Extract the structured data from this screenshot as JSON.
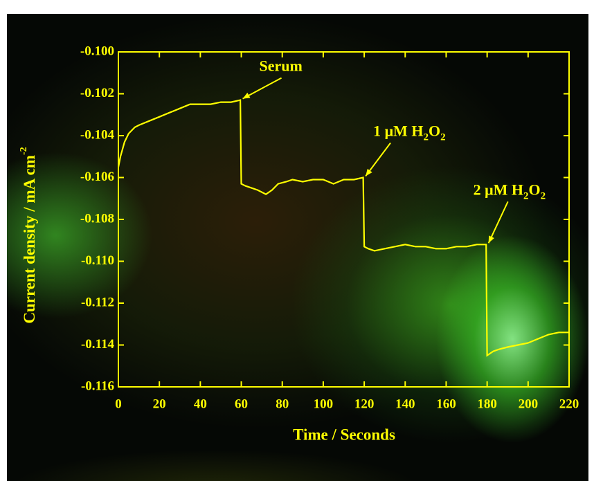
{
  "chart_data": {
    "type": "line",
    "x_label": "Time / Seconds",
    "y_label": [
      {
        "text": "Current density / mA cm",
        "sup": false
      },
      {
        "text": "-2",
        "sup": true
      }
    ],
    "color": "#ffff00",
    "x": [
      0,
      1,
      3,
      5,
      8,
      10,
      15,
      20,
      25,
      30,
      35,
      40,
      45,
      50,
      55,
      59.5,
      60,
      62,
      65,
      68,
      72,
      75,
      78,
      82,
      85,
      90,
      95,
      100,
      105,
      110,
      115,
      119.5,
      120,
      122,
      125,
      130,
      135,
      140,
      145,
      150,
      155,
      160,
      165,
      170,
      175,
      179.5,
      180,
      183,
      186,
      190,
      195,
      200,
      205,
      210,
      215,
      220
    ],
    "values": [
      -0.1055,
      -0.105,
      -0.1043,
      -0.1039,
      -0.1036,
      -0.1035,
      -0.1033,
      -0.1031,
      -0.1029,
      -0.1027,
      -0.1025,
      -0.1025,
      -0.1025,
      -0.1024,
      -0.1024,
      -0.1023,
      -0.1063,
      -0.1064,
      -0.1065,
      -0.1066,
      -0.1068,
      -0.1066,
      -0.1063,
      -0.1062,
      -0.1061,
      -0.1062,
      -0.1061,
      -0.1061,
      -0.1063,
      -0.1061,
      -0.1061,
      -0.106,
      -0.1093,
      -0.1094,
      -0.1095,
      -0.1094,
      -0.1093,
      -0.1092,
      -0.1093,
      -0.1093,
      -0.1094,
      -0.1094,
      -0.1093,
      -0.1093,
      -0.1092,
      -0.1092,
      -0.1145,
      -0.1143,
      -0.1142,
      -0.1141,
      -0.114,
      -0.1139,
      -0.1137,
      -0.1135,
      -0.1134,
      -0.1134
    ],
    "xlim": [
      0,
      220
    ],
    "xticks": [
      0,
      20,
      40,
      60,
      80,
      100,
      120,
      140,
      160,
      180,
      200,
      220
    ],
    "ylim": [
      -0.116,
      -0.1
    ],
    "yticks": [
      {
        "value": -0.1,
        "label": "-0.100"
      },
      {
        "value": -0.102,
        "label": "-0.102"
      },
      {
        "value": -0.104,
        "label": "-0.104"
      },
      {
        "value": -0.106,
        "label": "-0.106"
      },
      {
        "value": -0.108,
        "label": "-0.108"
      },
      {
        "value": -0.11,
        "label": "-0.110"
      },
      {
        "value": -0.112,
        "label": "-0.112"
      },
      {
        "value": -0.114,
        "label": "-0.114"
      },
      {
        "value": -0.116,
        "label": "-0.116"
      }
    ],
    "annotations": [
      {
        "x": 60,
        "y": -0.1023,
        "parts": [
          {
            "text": "Serum",
            "sub": false
          }
        ]
      },
      {
        "x": 120,
        "y": -0.106,
        "parts": [
          {
            "text": "1 μM H",
            "sub": false
          },
          {
            "text": "2",
            "sub": true
          },
          {
            "text": "O",
            "sub": false
          },
          {
            "text": "2",
            "sub": true
          }
        ]
      },
      {
        "x": 180,
        "y": -0.1092,
        "parts": [
          {
            "text": "2 μM H",
            "sub": false
          },
          {
            "text": "2",
            "sub": true
          },
          {
            "text": "O",
            "sub": false
          },
          {
            "text": "2",
            "sub": true
          }
        ]
      }
    ]
  }
}
